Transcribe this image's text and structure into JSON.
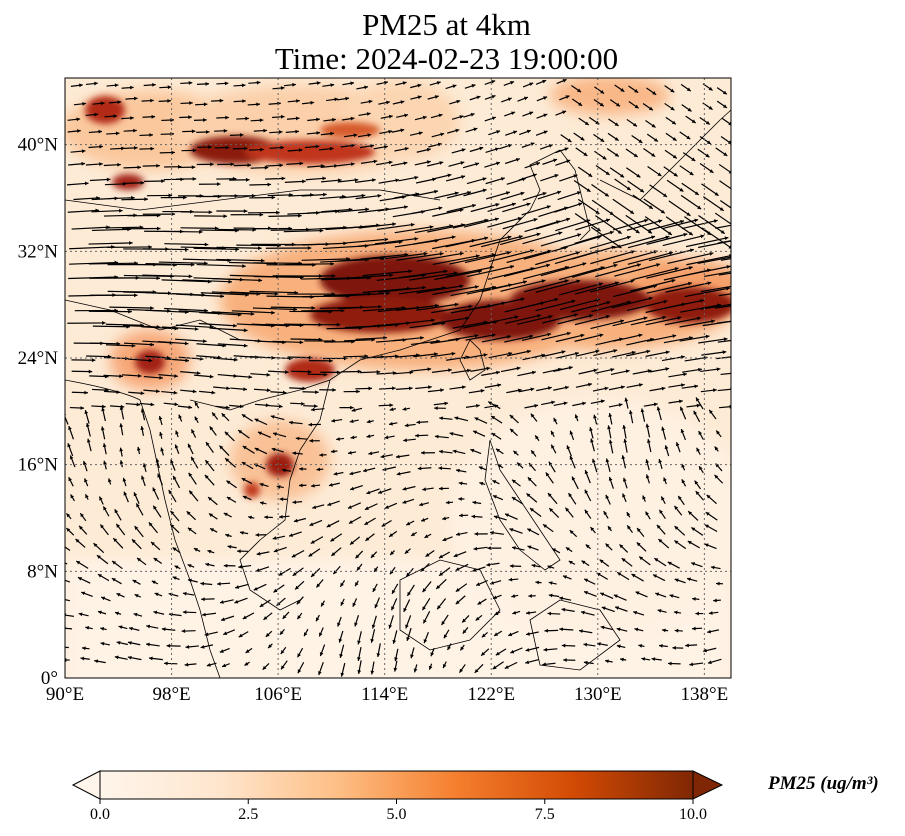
{
  "title": {
    "line1": "PM25 at 4km",
    "line2": "Time: 2024-02-23 19:00:00"
  },
  "map": {
    "lon_range": [
      90,
      140
    ],
    "lat_range": [
      0,
      45
    ],
    "lon_ticks": [
      "90°E",
      "98°E",
      "106°E",
      "114°E",
      "122°E",
      "130°E",
      "138°E"
    ],
    "lat_ticks": [
      "0°",
      "8°N",
      "16°N",
      "24°N",
      "32°N",
      "40°N"
    ],
    "gridlines": "dotted",
    "field": "PM25 concentration with wind vectors"
  },
  "colorbar": {
    "label": "PM25 (ug/m³)",
    "ticks": [
      "0.0",
      "2.5",
      "5.0",
      "7.5",
      "10.0"
    ],
    "range": [
      0,
      10
    ],
    "extend": "both",
    "colormap": [
      "#fff5eb",
      "#fdd9b4",
      "#fda762",
      "#f3701b",
      "#c54102",
      "#7f2704"
    ]
  }
}
